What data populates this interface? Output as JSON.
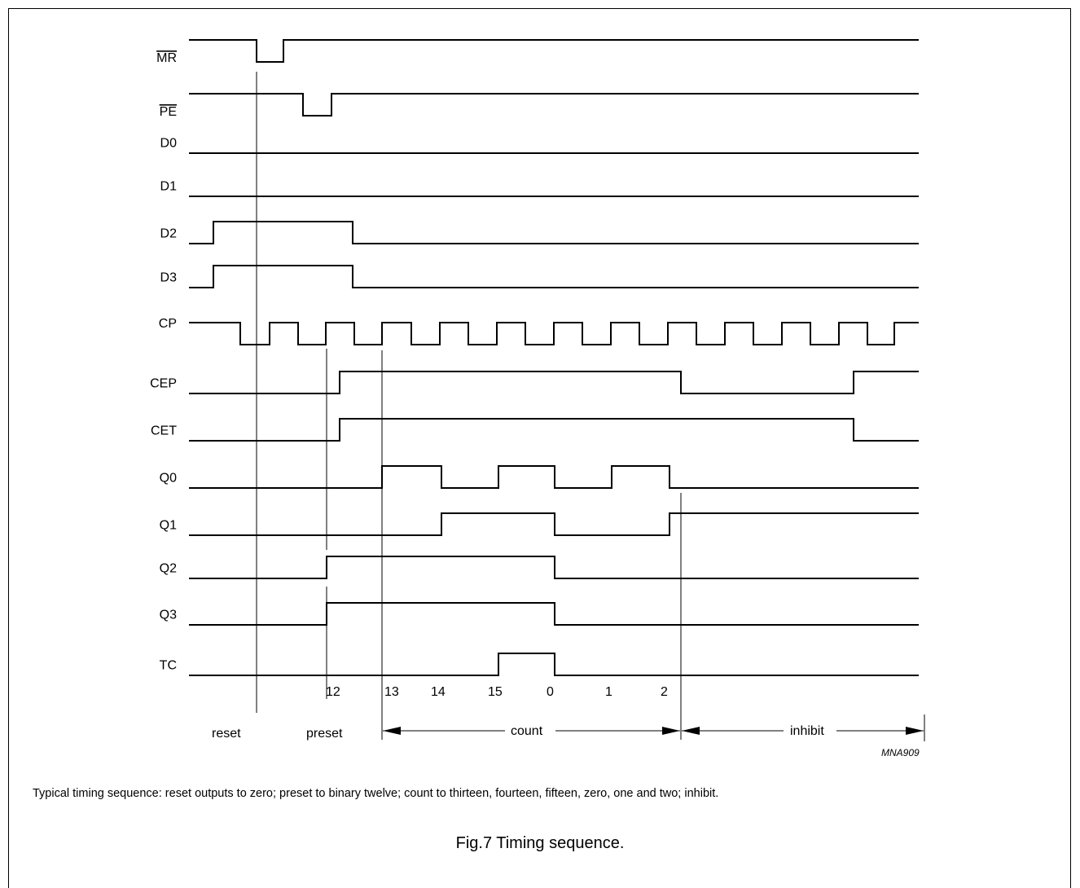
{
  "signals": [
    {
      "name": "MR",
      "overbar": true,
      "initial": 1,
      "transitions": [
        315,
        348
      ]
    },
    {
      "name": "PE",
      "overbar": true,
      "initial": 1,
      "transitions": [
        372,
        407
      ]
    },
    {
      "name": "D0",
      "overbar": false,
      "initial": 0,
      "transitions": []
    },
    {
      "name": "D1",
      "overbar": false,
      "initial": 0,
      "transitions": []
    },
    {
      "name": "D2",
      "overbar": false,
      "initial": 0,
      "transitions": [
        262,
        433
      ]
    },
    {
      "name": "D3",
      "overbar": false,
      "initial": 0,
      "transitions": [
        262,
        433
      ]
    },
    {
      "name": "CP",
      "overbar": false,
      "initial": 1,
      "transitions": [
        295,
        331,
        366,
        400,
        435,
        469,
        505,
        540,
        575,
        610,
        645,
        680,
        715,
        750,
        785,
        820,
        855,
        890,
        925,
        960,
        995,
        1030,
        1065,
        1098
      ]
    },
    {
      "name": "CEP",
      "overbar": false,
      "initial": 0,
      "transitions": [
        417,
        836,
        1048
      ]
    },
    {
      "name": "CET",
      "overbar": false,
      "initial": 0,
      "transitions": [
        417,
        1048
      ]
    },
    {
      "name": "Q0",
      "overbar": false,
      "initial": 0,
      "transitions": [
        469,
        542,
        612,
        681,
        751,
        822
      ]
    },
    {
      "name": "Q1",
      "overbar": false,
      "initial": 0,
      "transitions": [
        542,
        681,
        822
      ]
    },
    {
      "name": "Q2",
      "overbar": false,
      "initial": 0,
      "transitions": [
        401,
        681
      ]
    },
    {
      "name": "Q3",
      "overbar": false,
      "initial": 0,
      "transitions": [
        401,
        681
      ]
    },
    {
      "name": "TC",
      "overbar": false,
      "initial": 0,
      "transitions": [
        612,
        681
      ]
    }
  ],
  "state_values": [
    "12",
    "13",
    "14",
    "15",
    "0",
    "1",
    "2"
  ],
  "phases": {
    "reset": "reset",
    "preset": "preset",
    "count": "count",
    "inhibit": "inhibit"
  },
  "figure_ref": "MNA909",
  "caption": "Typical timing sequence: reset outputs to zero; preset to binary twelve; count to thirteen, fourteen, fifteen, zero, one and two; inhibit.",
  "fig_title": "Fig.7  Timing sequence."
}
